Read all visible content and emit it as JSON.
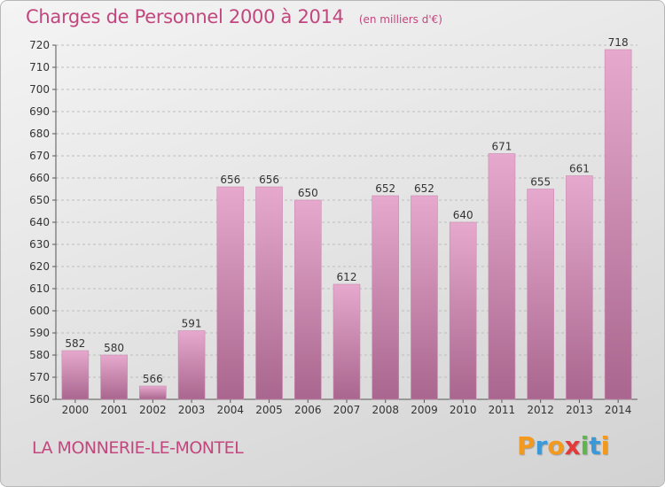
{
  "title": "Charges de Personnel 2000 à 2014",
  "subtitle": "(en milliers d'€)",
  "location": "LA MONNERIE-LE-MONTEL",
  "brand": {
    "letters": [
      "P",
      "r",
      "o",
      "x",
      "i",
      "t",
      "i"
    ],
    "colors": [
      "#f39a1e",
      "#3a9ad9",
      "#f39a1e",
      "#e23a3a",
      "#5db84a",
      "#3a9ad9",
      "#f39a1e"
    ]
  },
  "colors": {
    "title": "#c2477e",
    "bar_top": "#e6a9cd",
    "bar_bottom": "#a9668e",
    "grid": "#bdbdbd"
  },
  "chart_data": {
    "type": "bar",
    "title": "Charges de Personnel 2000 à 2014",
    "subtitle": "(en milliers d'€)",
    "xlabel": "",
    "ylabel": "",
    "categories": [
      "2000",
      "2001",
      "2002",
      "2003",
      "2004",
      "2005",
      "2006",
      "2007",
      "2008",
      "2009",
      "2010",
      "2011",
      "2012",
      "2013",
      "2014"
    ],
    "values": [
      582,
      580,
      566,
      591,
      656,
      656,
      650,
      612,
      652,
      652,
      640,
      671,
      655,
      661,
      718
    ],
    "ylim": [
      560,
      720
    ],
    "yticks": [
      560,
      570,
      580,
      590,
      600,
      610,
      620,
      630,
      640,
      650,
      660,
      670,
      680,
      690,
      700,
      710,
      720
    ],
    "grid": true,
    "legend": "none"
  }
}
